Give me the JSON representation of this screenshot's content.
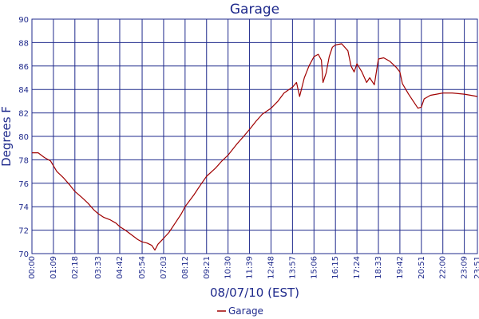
{
  "chart_data": {
    "type": "line",
    "title": "Garage",
    "xlabel": "08/07/10 (EST)",
    "ylabel": "Degrees F",
    "x_ticks": [
      "00:00",
      "01:09",
      "02:18",
      "03:33",
      "04:42",
      "05:54",
      "07:03",
      "08:12",
      "09:21",
      "10:30",
      "11:39",
      "12:48",
      "13:57",
      "15:06",
      "16:15",
      "17:24",
      "18:33",
      "19:42",
      "20:51",
      "22:00",
      "23:09",
      "23:51"
    ],
    "y_ticks": [
      70,
      72,
      74,
      76,
      78,
      80,
      82,
      84,
      86,
      88,
      90
    ],
    "ylim": [
      70,
      90
    ],
    "grid": true,
    "legend_position": "bottom-center",
    "colors": {
      "series": "#a00000",
      "grid": "#1f2a8c",
      "text": "#1f2a8c"
    },
    "series": [
      {
        "name": "Garage",
        "points": [
          [
            "00:00",
            78.6
          ],
          [
            "00:20",
            78.6
          ],
          [
            "00:40",
            78.2
          ],
          [
            "01:00",
            77.9
          ],
          [
            "01:20",
            77.0
          ],
          [
            "01:40",
            76.5
          ],
          [
            "02:00",
            75.9
          ],
          [
            "02:18",
            75.3
          ],
          [
            "02:40",
            74.8
          ],
          [
            "03:00",
            74.3
          ],
          [
            "03:20",
            73.7
          ],
          [
            "03:33",
            73.4
          ],
          [
            "03:50",
            73.1
          ],
          [
            "04:10",
            72.9
          ],
          [
            "04:30",
            72.6
          ],
          [
            "04:42",
            72.3
          ],
          [
            "05:00",
            72.0
          ],
          [
            "05:20",
            71.6
          ],
          [
            "05:40",
            71.2
          ],
          [
            "05:54",
            71.0
          ],
          [
            "06:10",
            70.9
          ],
          [
            "06:25",
            70.7
          ],
          [
            "06:35",
            70.3
          ],
          [
            "06:45",
            70.8
          ],
          [
            "07:03",
            71.3
          ],
          [
            "07:20",
            71.8
          ],
          [
            "07:40",
            72.6
          ],
          [
            "08:00",
            73.4
          ],
          [
            "08:12",
            74.0
          ],
          [
            "08:40",
            75.0
          ],
          [
            "09:00",
            75.8
          ],
          [
            "09:21",
            76.6
          ],
          [
            "09:50",
            77.3
          ],
          [
            "10:10",
            77.9
          ],
          [
            "10:30",
            78.4
          ],
          [
            "11:00",
            79.4
          ],
          [
            "11:20",
            80.0
          ],
          [
            "11:39",
            80.6
          ],
          [
            "12:00",
            81.3
          ],
          [
            "12:20",
            81.9
          ],
          [
            "12:48",
            82.4
          ],
          [
            "13:10",
            83.0
          ],
          [
            "13:30",
            83.7
          ],
          [
            "13:57",
            84.2
          ],
          [
            "14:10",
            84.6
          ],
          [
            "14:20",
            83.4
          ],
          [
            "14:35",
            85.0
          ],
          [
            "14:50",
            86.0
          ],
          [
            "15:06",
            86.8
          ],
          [
            "15:20",
            87.0
          ],
          [
            "15:30",
            86.5
          ],
          [
            "15:35",
            84.6
          ],
          [
            "15:45",
            85.4
          ],
          [
            "15:55",
            86.8
          ],
          [
            "16:05",
            87.6
          ],
          [
            "16:15",
            87.8
          ],
          [
            "16:35",
            87.9
          ],
          [
            "16:55",
            87.3
          ],
          [
            "17:05",
            86.0
          ],
          [
            "17:15",
            85.5
          ],
          [
            "17:24",
            86.2
          ],
          [
            "17:40",
            85.5
          ],
          [
            "17:55",
            84.6
          ],
          [
            "18:05",
            85.0
          ],
          [
            "18:20",
            84.4
          ],
          [
            "18:33",
            86.6
          ],
          [
            "18:50",
            86.7
          ],
          [
            "19:10",
            86.4
          ],
          [
            "19:30",
            85.9
          ],
          [
            "19:42",
            85.5
          ],
          [
            "19:50",
            84.5
          ],
          [
            "20:10",
            83.6
          ],
          [
            "20:30",
            82.8
          ],
          [
            "20:40",
            82.4
          ],
          [
            "20:51",
            82.5
          ],
          [
            "21:00",
            83.2
          ],
          [
            "21:20",
            83.5
          ],
          [
            "21:40",
            83.6
          ],
          [
            "22:00",
            83.7
          ],
          [
            "22:30",
            83.7
          ],
          [
            "23:09",
            83.6
          ],
          [
            "23:30",
            83.5
          ],
          [
            "23:51",
            83.4
          ]
        ]
      }
    ]
  }
}
